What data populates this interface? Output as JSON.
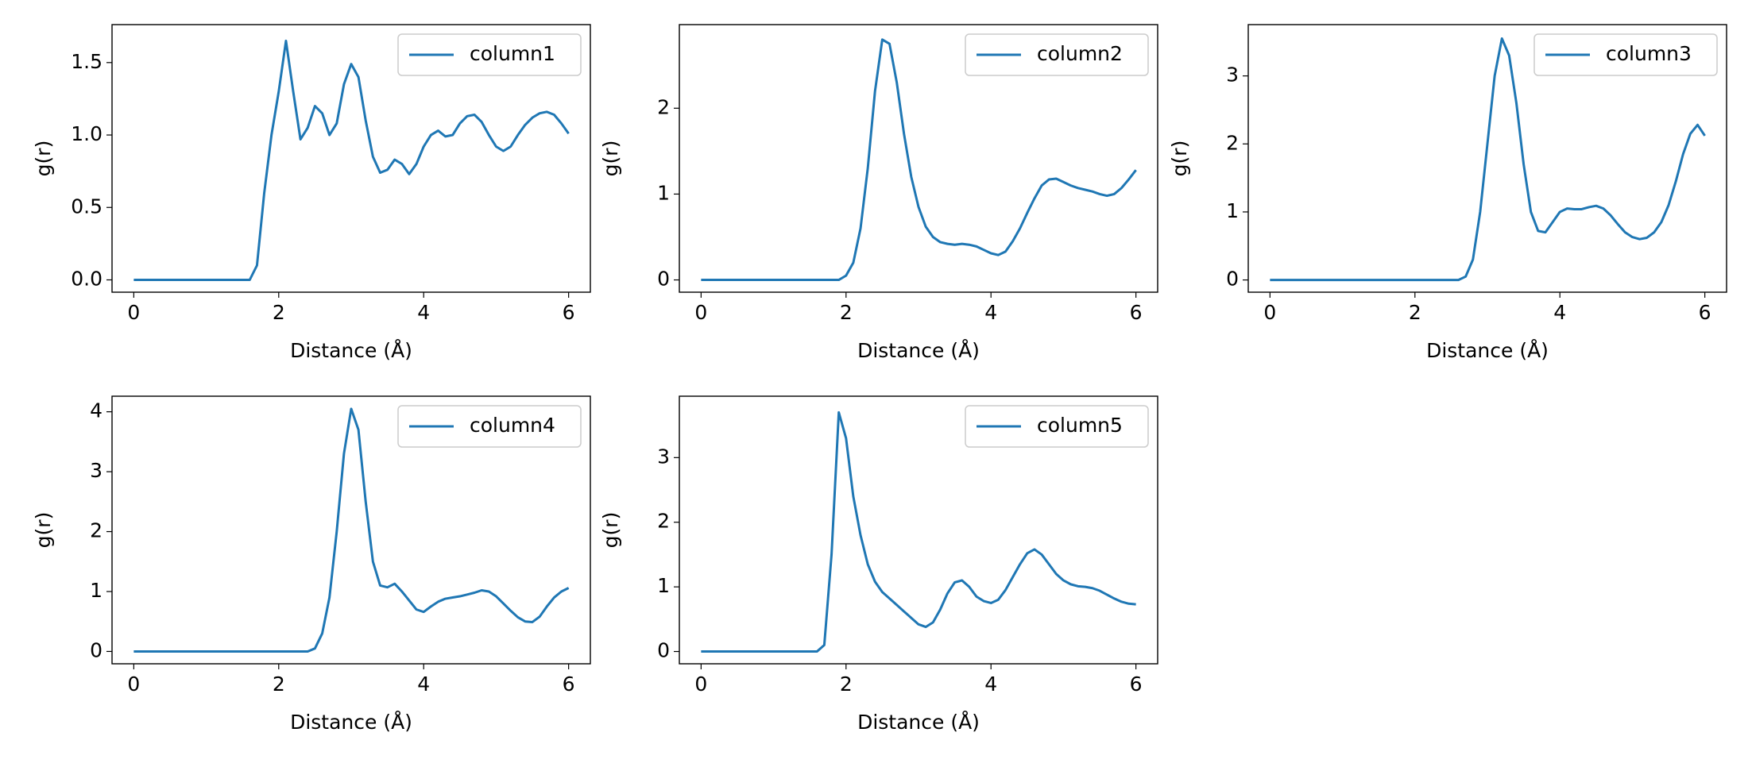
{
  "chart_data": [
    {
      "type": "line",
      "xlabel": "Distance (Å)",
      "ylabel": "g(r)",
      "legend": "upper right",
      "x": [
        0,
        0.1,
        0.2,
        0.3,
        0.4,
        0.5,
        0.6,
        0.7,
        0.8,
        0.9,
        1,
        1.1,
        1.2,
        1.3,
        1.4,
        1.5,
        1.6,
        1.7,
        1.8,
        1.9,
        2,
        2.1,
        2.2,
        2.3,
        2.4,
        2.5,
        2.6,
        2.7,
        2.8,
        2.9,
        3,
        3.1,
        3.2,
        3.3,
        3.4,
        3.5,
        3.6,
        3.7,
        3.8,
        3.9,
        4,
        4.1,
        4.2,
        4.3,
        4.4,
        4.5,
        4.6,
        4.7,
        4.8,
        4.9,
        5,
        5.1,
        5.2,
        5.3,
        5.4,
        5.5,
        5.6,
        5.7,
        5.8,
        5.9,
        6
      ],
      "series": [
        {
          "name": "column1",
          "color": "#1f77b4",
          "values": [
            0,
            0,
            0,
            0,
            0,
            0,
            0,
            0,
            0,
            0,
            0,
            0,
            0,
            0,
            0,
            0,
            0,
            0.1,
            0.6,
            1.0,
            1.3,
            1.65,
            1.3,
            0.97,
            1.05,
            1.2,
            1.15,
            1.0,
            1.08,
            1.35,
            1.49,
            1.4,
            1.1,
            0.85,
            0.74,
            0.76,
            0.83,
            0.8,
            0.73,
            0.8,
            0.92,
            1.0,
            1.03,
            0.99,
            1.0,
            1.08,
            1.13,
            1.14,
            1.09,
            1.0,
            0.92,
            0.89,
            0.92,
            1.0,
            1.07,
            1.12,
            1.15,
            1.16,
            1.14,
            1.08,
            1.01
          ]
        }
      ],
      "xlim": [
        -0.3,
        6.3
      ],
      "ylim": [
        -0.085,
        1.762
      ],
      "xticks": [
        0,
        2,
        4,
        6
      ],
      "yticks": [
        {
          "value": 0,
          "label": "0.0"
        },
        0.5,
        {
          "value": 1,
          "label": "1.0"
        },
        1.5
      ]
    },
    {
      "type": "line",
      "xlabel": "Distance (Å)",
      "ylabel": "g(r)",
      "legend": "upper right",
      "x": [
        0,
        0.1,
        0.2,
        0.3,
        0.4,
        0.5,
        0.6,
        0.7,
        0.8,
        0.9,
        1,
        1.1,
        1.2,
        1.3,
        1.4,
        1.5,
        1.6,
        1.7,
        1.8,
        1.9,
        2,
        2.1,
        2.2,
        2.3,
        2.4,
        2.5,
        2.6,
        2.7,
        2.8,
        2.9,
        3,
        3.1,
        3.2,
        3.3,
        3.4,
        3.5,
        3.6,
        3.7,
        3.8,
        3.9,
        4,
        4.1,
        4.2,
        4.3,
        4.4,
        4.5,
        4.6,
        4.7,
        4.8,
        4.9,
        5,
        5.1,
        5.2,
        5.3,
        5.4,
        5.5,
        5.6,
        5.7,
        5.8,
        5.9,
        6
      ],
      "series": [
        {
          "name": "column2",
          "color": "#1f77b4",
          "values": [
            0,
            0,
            0,
            0,
            0,
            0,
            0,
            0,
            0,
            0,
            0,
            0,
            0,
            0,
            0,
            0,
            0,
            0,
            0,
            0,
            0.05,
            0.2,
            0.6,
            1.3,
            2.2,
            2.8,
            2.75,
            2.3,
            1.7,
            1.2,
            0.85,
            0.62,
            0.5,
            0.44,
            0.42,
            0.41,
            0.42,
            0.41,
            0.39,
            0.35,
            0.31,
            0.29,
            0.33,
            0.45,
            0.6,
            0.78,
            0.95,
            1.1,
            1.17,
            1.18,
            1.14,
            1.1,
            1.07,
            1.05,
            1.03,
            1.0,
            0.98,
            1.0,
            1.07,
            1.17,
            1.28
          ]
        }
      ],
      "xlim": [
        -0.3,
        6.3
      ],
      "ylim": [
        -0.143,
        2.974
      ],
      "xticks": [
        0,
        2,
        4,
        6
      ],
      "yticks": [
        0,
        1,
        2
      ]
    },
    {
      "type": "line",
      "xlabel": "Distance (Å)",
      "ylabel": "g(r)",
      "legend": "upper right",
      "x": [
        0,
        0.1,
        0.2,
        0.3,
        0.4,
        0.5,
        0.6,
        0.7,
        0.8,
        0.9,
        1,
        1.1,
        1.2,
        1.3,
        1.4,
        1.5,
        1.6,
        1.7,
        1.8,
        1.9,
        2,
        2.1,
        2.2,
        2.3,
        2.4,
        2.5,
        2.6,
        2.7,
        2.8,
        2.9,
        3,
        3.1,
        3.2,
        3.3,
        3.4,
        3.5,
        3.6,
        3.7,
        3.8,
        3.9,
        4,
        4.1,
        4.2,
        4.3,
        4.4,
        4.5,
        4.6,
        4.7,
        4.8,
        4.9,
        5,
        5.1,
        5.2,
        5.3,
        5.4,
        5.5,
        5.6,
        5.7,
        5.8,
        5.9,
        6
      ],
      "series": [
        {
          "name": "column3",
          "color": "#1f77b4",
          "values": [
            0,
            0,
            0,
            0,
            0,
            0,
            0,
            0,
            0,
            0,
            0,
            0,
            0,
            0,
            0,
            0,
            0,
            0,
            0,
            0,
            0,
            0,
            0,
            0,
            0,
            0,
            0,
            0.05,
            0.3,
            1.0,
            2.0,
            3.0,
            3.55,
            3.3,
            2.6,
            1.7,
            1.0,
            0.72,
            0.7,
            0.85,
            1.0,
            1.05,
            1.04,
            1.04,
            1.07,
            1.09,
            1.05,
            0.95,
            0.82,
            0.7,
            0.63,
            0.6,
            0.62,
            0.7,
            0.85,
            1.1,
            1.45,
            1.85,
            2.15,
            2.28,
            2.12
          ]
        }
      ],
      "xlim": [
        -0.3,
        6.3
      ],
      "ylim": [
        -0.18,
        3.754
      ],
      "xticks": [
        0,
        2,
        4,
        6
      ],
      "yticks": [
        0,
        1,
        2,
        3
      ]
    },
    {
      "type": "line",
      "xlabel": "Distance (Å)",
      "ylabel": "g(r)",
      "legend": "upper right",
      "x": [
        0,
        0.1,
        0.2,
        0.3,
        0.4,
        0.5,
        0.6,
        0.7,
        0.8,
        0.9,
        1,
        1.1,
        1.2,
        1.3,
        1.4,
        1.5,
        1.6,
        1.7,
        1.8,
        1.9,
        2,
        2.1,
        2.2,
        2.3,
        2.4,
        2.5,
        2.6,
        2.7,
        2.8,
        2.9,
        3,
        3.1,
        3.2,
        3.3,
        3.4,
        3.5,
        3.6,
        3.7,
        3.8,
        3.9,
        4,
        4.1,
        4.2,
        4.3,
        4.4,
        4.5,
        4.6,
        4.7,
        4.8,
        4.9,
        5,
        5.1,
        5.2,
        5.3,
        5.4,
        5.5,
        5.6,
        5.7,
        5.8,
        5.9,
        6
      ],
      "series": [
        {
          "name": "column4",
          "color": "#1f77b4",
          "values": [
            0,
            0,
            0,
            0,
            0,
            0,
            0,
            0,
            0,
            0,
            0,
            0,
            0,
            0,
            0,
            0,
            0,
            0,
            0,
            0,
            0,
            0,
            0,
            0,
            0,
            0.05,
            0.3,
            0.9,
            2.0,
            3.3,
            4.05,
            3.7,
            2.5,
            1.5,
            1.1,
            1.07,
            1.13,
            1.0,
            0.85,
            0.7,
            0.66,
            0.75,
            0.83,
            0.88,
            0.9,
            0.92,
            0.95,
            0.98,
            1.02,
            1.0,
            0.92,
            0.8,
            0.68,
            0.57,
            0.5,
            0.49,
            0.58,
            0.75,
            0.9,
            1.0,
            1.06
          ]
        }
      ],
      "xlim": [
        -0.3,
        6.3
      ],
      "ylim": [
        -0.206,
        4.26
      ],
      "xticks": [
        0,
        2,
        4,
        6
      ],
      "yticks": [
        0,
        1,
        2,
        3,
        4
      ]
    },
    {
      "type": "line",
      "xlabel": "Distance (Å)",
      "ylabel": "g(r)",
      "legend": "upper right",
      "x": [
        0,
        0.1,
        0.2,
        0.3,
        0.4,
        0.5,
        0.6,
        0.7,
        0.8,
        0.9,
        1,
        1.1,
        1.2,
        1.3,
        1.4,
        1.5,
        1.6,
        1.7,
        1.8,
        1.9,
        2,
        2.1,
        2.2,
        2.3,
        2.4,
        2.5,
        2.6,
        2.7,
        2.8,
        2.9,
        3,
        3.1,
        3.2,
        3.3,
        3.4,
        3.5,
        3.6,
        3.7,
        3.8,
        3.9,
        4,
        4.1,
        4.2,
        4.3,
        4.4,
        4.5,
        4.6,
        4.7,
        4.8,
        4.9,
        5,
        5.1,
        5.2,
        5.3,
        5.4,
        5.5,
        5.6,
        5.7,
        5.8,
        5.9,
        6
      ],
      "series": [
        {
          "name": "column5",
          "color": "#1f77b4",
          "values": [
            0,
            0,
            0,
            0,
            0,
            0,
            0,
            0,
            0,
            0,
            0,
            0,
            0,
            0,
            0,
            0,
            0,
            0.1,
            1.5,
            3.7,
            3.3,
            2.4,
            1.8,
            1.35,
            1.08,
            0.92,
            0.82,
            0.72,
            0.62,
            0.52,
            0.42,
            0.38,
            0.45,
            0.65,
            0.9,
            1.07,
            1.1,
            1.0,
            0.85,
            0.78,
            0.75,
            0.8,
            0.95,
            1.15,
            1.35,
            1.52,
            1.58,
            1.5,
            1.35,
            1.2,
            1.1,
            1.04,
            1.01,
            1.0,
            0.98,
            0.94,
            0.88,
            0.82,
            0.77,
            0.74,
            0.73
          ]
        }
      ],
      "xlim": [
        -0.3,
        6.3
      ],
      "ylim": [
        -0.19,
        3.95
      ],
      "xticks": [
        0,
        2,
        4,
        6
      ],
      "yticks": [
        0,
        1,
        2,
        3
      ]
    }
  ]
}
